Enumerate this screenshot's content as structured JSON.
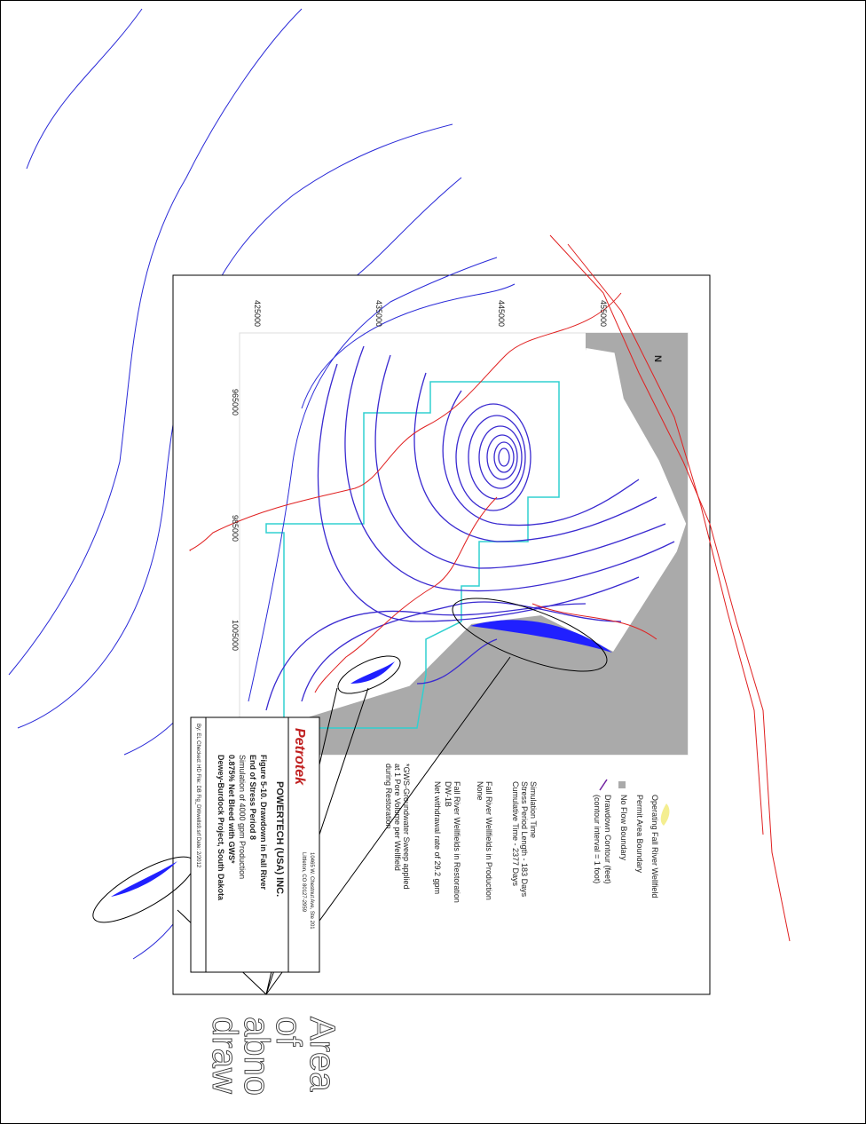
{
  "map": {
    "axes": {
      "x_labels": [
        "425000",
        "435000",
        "445000",
        "455000"
      ],
      "y_labels": [
        "965000",
        "985000",
        "1005000"
      ]
    },
    "north": "N",
    "legend": [
      "Operating Fall River Wellfield",
      "Permit Area Boundary",
      "No Flow Boundary",
      "Drawdown Contour (feet)",
      "(contour interval = 1 foot)"
    ],
    "notes": {
      "simulation": [
        "Simulation Time",
        "Stress Period Length - 183 Days",
        "Cumulative Time - 2377 Days"
      ],
      "production": [
        "Fall River Wellfields in Production",
        "None"
      ],
      "restoration": [
        "Fall River Wellfields in Restoration",
        "DW-1B",
        "Net withdrawal rate of 29.2 gpm"
      ],
      "gws": [
        "*GWS-Groundwater Sweep applied",
        "at 1 Pore Volume per Wellfield",
        "during Restoration"
      ]
    },
    "title_block": {
      "logo": "Petrotek",
      "address": [
        "10465 W. Chestnut Ave, Ste 201",
        "Littleton, CO 80127-2959"
      ],
      "company": "POWERTECH (USA) INC.",
      "title": [
        "Figure 5-10. Drawdown in Fall River",
        "End of Stress Period 8",
        "Simulation of 4000 gpm Production",
        "0.875% Net Bleed with GWS*",
        "Dewey-Burdock Project, South Dakota"
      ],
      "footer": "By: EL   Checked: HD   File: DB Fig_DWwells9.srf   Date: 2/2012"
    },
    "annotation": [
      "Area",
      "of",
      "abno",
      "draw"
    ]
  }
}
